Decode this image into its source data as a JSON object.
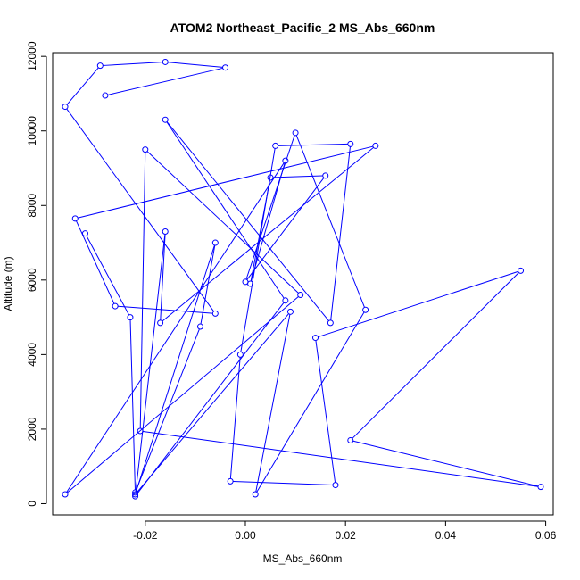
{
  "chart_data": {
    "type": "line",
    "title": "ATOM2 Northeast_Pacific_2 MS_Abs_660nm",
    "xlabel": "MS_Abs_660nm",
    "ylabel": "Altitude (m)",
    "xlim": [
      -0.0385,
      0.0615
    ],
    "ylim": [
      -300,
      12100
    ],
    "xticks": [
      -0.02,
      0.0,
      0.02,
      0.04,
      0.06
    ],
    "xtick_labels": [
      "-0.02",
      "0.00",
      "0.02",
      "0.04",
      "0.06"
    ],
    "yticks": [
      0,
      2000,
      4000,
      6000,
      8000,
      10000,
      12000
    ],
    "ytick_labels": [
      "0",
      "2000",
      "4000",
      "6000",
      "8000",
      "10000",
      "12000"
    ],
    "grid": false,
    "series": [
      {
        "color": "#0000ff",
        "marker": "open-circle",
        "points": [
          [
            -0.028,
            10950
          ],
          [
            -0.004,
            11700
          ],
          [
            -0.016,
            11850
          ],
          [
            -0.029,
            11750
          ],
          [
            -0.036,
            10650
          ],
          [
            -0.006,
            5100
          ],
          [
            -0.026,
            5300
          ],
          [
            -0.034,
            7650
          ],
          [
            0.026,
            9600
          ],
          [
            -0.017,
            4850
          ],
          [
            -0.016,
            7300
          ],
          [
            -0.022,
            200
          ],
          [
            0.008,
            5450
          ],
          [
            -0.016,
            10300
          ],
          [
            0.017,
            4850
          ],
          [
            0.021,
            9650
          ],
          [
            0.006,
            9600
          ],
          [
            -0.001,
            4000
          ],
          [
            -0.003,
            600
          ],
          [
            0.018,
            500
          ],
          [
            0.014,
            4450
          ],
          [
            0.055,
            6250
          ],
          [
            0.021,
            1700
          ],
          [
            0.059,
            450
          ],
          [
            -0.021,
            1950
          ],
          [
            -0.02,
            9500
          ],
          [
            0.011,
            5600
          ],
          [
            -0.036,
            250
          ],
          [
            0.008,
            9200
          ],
          [
            0.001,
            5900
          ],
          [
            0.005,
            8750
          ],
          [
            0.016,
            8800
          ],
          [
            0.0,
            5950
          ],
          [
            0.01,
            9950
          ],
          [
            0.024,
            5200
          ],
          [
            0.002,
            250
          ],
          [
            0.009,
            5150
          ],
          [
            -0.022,
            250
          ],
          [
            -0.006,
            7000
          ],
          [
            -0.009,
            4750
          ],
          [
            -0.022,
            300
          ],
          [
            -0.023,
            5000
          ],
          [
            -0.032,
            7250
          ]
        ]
      }
    ]
  }
}
